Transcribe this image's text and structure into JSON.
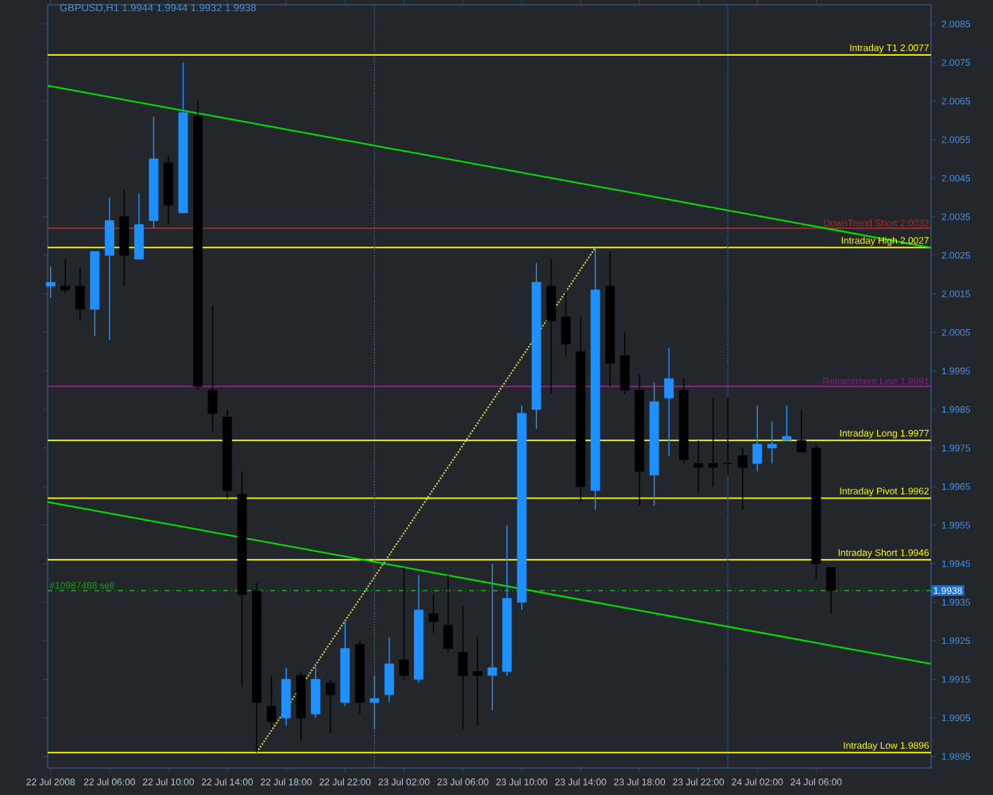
{
  "chart_data": {
    "type": "candlestick",
    "title": "GBPUSD,H1 1.9944 1.9944 1.9932 1.9938",
    "x": [
      "2008-07-22T02:00",
      "2008-07-22T03:00",
      "2008-07-22T04:00",
      "2008-07-22T05:00",
      "2008-07-22T06:00",
      "2008-07-22T07:00",
      "2008-07-22T08:00",
      "2008-07-22T09:00",
      "2008-07-22T10:00",
      "2008-07-22T11:00",
      "2008-07-22T12:00",
      "2008-07-22T13:00",
      "2008-07-22T14:00",
      "2008-07-22T15:00",
      "2008-07-22T16:00",
      "2008-07-22T17:00",
      "2008-07-22T18:00",
      "2008-07-22T19:00",
      "2008-07-22T20:00",
      "2008-07-22T21:00",
      "2008-07-22T22:00",
      "2008-07-22T23:00",
      "2008-07-23T00:00",
      "2008-07-23T01:00",
      "2008-07-23T02:00",
      "2008-07-23T03:00",
      "2008-07-23T04:00",
      "2008-07-23T05:00",
      "2008-07-23T06:00",
      "2008-07-23T07:00",
      "2008-07-23T08:00",
      "2008-07-23T09:00",
      "2008-07-23T10:00",
      "2008-07-23T11:00",
      "2008-07-23T12:00",
      "2008-07-23T13:00",
      "2008-07-23T14:00",
      "2008-07-23T15:00",
      "2008-07-23T16:00",
      "2008-07-23T17:00",
      "2008-07-23T18:00",
      "2008-07-23T19:00",
      "2008-07-23T20:00",
      "2008-07-23T21:00",
      "2008-07-23T22:00",
      "2008-07-23T23:00",
      "2008-07-24T00:00",
      "2008-07-24T01:00",
      "2008-07-24T02:00",
      "2008-07-24T03:00",
      "2008-07-24T04:00",
      "2008-07-24T05:00",
      "2008-07-24T06:00",
      "2008-07-24T07:00"
    ],
    "ohlc": [
      [
        2.0017,
        2.0022,
        2.0014,
        2.0018
      ],
      [
        2.0017,
        2.0024,
        2.0015,
        2.0016
      ],
      [
        2.0017,
        2.0022,
        2.0008,
        2.0011
      ],
      [
        2.0011,
        2.0026,
        2.0004,
        2.0026
      ],
      [
        2.0025,
        2.004,
        2.0003,
        2.0034
      ],
      [
        2.0035,
        2.0042,
        2.0017,
        2.0025
      ],
      [
        2.0024,
        2.0041,
        2.0024,
        2.0033
      ],
      [
        2.0034,
        2.0061,
        2.0032,
        2.005
      ],
      [
        2.0049,
        2.0051,
        2.0033,
        2.0038
      ],
      [
        2.0036,
        2.0075,
        2.0036,
        2.0062
      ],
      [
        2.0061,
        2.0065,
        1.999,
        1.9991
      ],
      [
        1.999,
        2.0012,
        1.9979,
        1.9984
      ],
      [
        1.9983,
        1.9985,
        1.9962,
        1.9964
      ],
      [
        1.9963,
        1.9969,
        1.9913,
        1.9937
      ],
      [
        1.9938,
        1.994,
        1.9896,
        1.9909
      ],
      [
        1.9908,
        1.9916,
        1.9902,
        1.9904
      ],
      [
        1.9905,
        1.9918,
        1.9903,
        1.9915
      ],
      [
        1.9916,
        1.9917,
        1.9899,
        1.9905
      ],
      [
        1.9906,
        1.9919,
        1.9905,
        1.9915
      ],
      [
        1.9914,
        1.9915,
        1.9901,
        1.9911
      ],
      [
        1.9909,
        1.993,
        1.9908,
        1.9923
      ],
      [
        1.9924,
        1.9925,
        1.9906,
        1.9909
      ],
      [
        1.9909,
        1.9916,
        1.9902,
        1.991
      ],
      [
        1.9911,
        1.9926,
        1.9909,
        1.9919
      ],
      [
        1.992,
        1.9944,
        1.9915,
        1.9916
      ],
      [
        1.9915,
        1.9942,
        1.9914,
        1.9933
      ],
      [
        1.9932,
        1.9937,
        1.9927,
        1.993
      ],
      [
        1.9929,
        1.9942,
        1.9922,
        1.9923
      ],
      [
        1.9922,
        1.9934,
        1.9902,
        1.9916
      ],
      [
        1.9917,
        1.9926,
        1.9903,
        1.9916
      ],
      [
        1.9916,
        1.9945,
        1.9907,
        1.9918
      ],
      [
        1.9917,
        1.9955,
        1.9916,
        1.9936
      ],
      [
        1.9935,
        1.9986,
        1.9933,
        1.9984
      ],
      [
        1.9985,
        2.0023,
        1.998,
        2.0018
      ],
      [
        2.0017,
        2.0024,
        1.9989,
        2.0008
      ],
      [
        2.0009,
        2.0016,
        1.9999,
        2.0002
      ],
      [
        2.0,
        2.0009,
        1.9961,
        1.9965
      ],
      [
        1.9964,
        2.0027,
        1.9959,
        2.0016
      ],
      [
        2.0017,
        2.0026,
        1.9991,
        1.9997
      ],
      [
        1.9999,
        2.0005,
        1.9989,
        1.999
      ],
      [
        1.999,
        1.9994,
        1.996,
        1.9969
      ],
      [
        1.9968,
        1.9992,
        1.996,
        1.9987
      ],
      [
        1.9988,
        2.0001,
        1.9973,
        1.9993
      ],
      [
        1.999,
        1.9993,
        1.9971,
        1.9972
      ],
      [
        1.9971,
        1.9977,
        1.9963,
        1.997
      ],
      [
        1.9971,
        1.9988,
        1.9965,
        1.997
      ],
      [
        1.9971,
        1.9988,
        1.9968,
        1.9971
      ],
      [
        1.9973,
        1.9975,
        1.9959,
        1.997
      ],
      [
        1.9971,
        1.9986,
        1.9969,
        1.9976
      ],
      [
        1.9975,
        1.9982,
        1.9971,
        1.9976
      ],
      [
        1.9977,
        1.9986,
        1.9977,
        1.9978
      ],
      [
        1.9977,
        1.9985,
        1.9974,
        1.9974
      ],
      [
        1.9975,
        1.9976,
        1.9941,
        1.9945
      ],
      [
        1.9944,
        1.9944,
        1.9932,
        1.9938
      ]
    ],
    "colors": [
      "#1e90ff",
      "#000000",
      "#000000",
      "#1e90ff",
      "#1e90ff",
      "#000000",
      "#1e90ff",
      "#1e90ff",
      "#000000",
      "#1e90ff",
      "#000000",
      "#000000",
      "#000000",
      "#000000",
      "#000000",
      "#000000",
      "#1e90ff",
      "#000000",
      "#1e90ff",
      "#000000",
      "#1e90ff",
      "#000000",
      "#1e90ff",
      "#1e90ff",
      "#000000",
      "#1e90ff",
      "#000000",
      "#000000",
      "#000000",
      "#000000",
      "#1e90ff",
      "#1e90ff",
      "#1e90ff",
      "#1e90ff",
      "#000000",
      "#000000",
      "#000000",
      "#1e90ff",
      "#000000",
      "#000000",
      "#000000",
      "#1e90ff",
      "#1e90ff",
      "#000000",
      "#000000",
      "#000000",
      "#000000",
      "#000000",
      "#1e90ff",
      "#1e90ff",
      "#1e90ff",
      "#000000",
      "#000000",
      "#000000"
    ],
    "series": [
      {
        "type": "line",
        "x": [
          "2008-07-22T01:48",
          "2008-07-24T13:48"
        ],
        "values": [
          2.0069,
          2.0027
        ],
        "color": "#00e000"
      },
      {
        "type": "line",
        "x": [
          "2008-07-22T01:48",
          "2008-07-24T13:48"
        ],
        "values": [
          1.9961,
          1.9919
        ],
        "color": "#00e000"
      },
      {
        "type": "line",
        "x": [
          "2008-07-22T16:00",
          "2008-07-23T15:00"
        ],
        "values": [
          1.9896,
          2.0027
        ],
        "color": "#d8d840",
        "line_style": "dotted"
      }
    ],
    "xlim": [
      "2008-07-22T01:48",
      "2008-07-24T13:48"
    ],
    "xticks": [
      {
        "value": "2008-07-22T02:00",
        "label": "22 Jul 2008"
      },
      {
        "value": "2008-07-22T06:00",
        "label": "22 Jul 06:00"
      },
      {
        "value": "2008-07-22T10:00",
        "label": "22 Jul 10:00"
      },
      {
        "value": "2008-07-22T14:00",
        "label": "22 Jul 14:00"
      },
      {
        "value": "2008-07-22T18:00",
        "label": "22 Jul 18:00"
      },
      {
        "value": "2008-07-22T22:00",
        "label": "22 Jul 22:00"
      },
      {
        "value": "2008-07-23T02:00",
        "label": "23 Jul 02:00"
      },
      {
        "value": "2008-07-23T06:00",
        "label": "23 Jul 06:00"
      },
      {
        "value": "2008-07-23T10:00",
        "label": "23 Jul 10:00"
      },
      {
        "value": "2008-07-23T14:00",
        "label": "23 Jul 14:00"
      },
      {
        "value": "2008-07-23T18:00",
        "label": "23 Jul 18:00"
      },
      {
        "value": "2008-07-23T22:00",
        "label": "23 Jul 22:00"
      },
      {
        "value": "2008-07-24T02:00",
        "label": "24 Jul 02:00"
      },
      {
        "value": "2008-07-24T06:00",
        "label": "24 Jul 06:00"
      }
    ],
    "ylim": [
      1.9892,
      2.009
    ],
    "yticks": [
      1.9895,
      1.9905,
      1.9915,
      1.9925,
      1.9935,
      1.9945,
      1.9955,
      1.9965,
      1.9975,
      1.9985,
      1.9995,
      2.0005,
      2.0015,
      2.0025,
      2.0035,
      2.0045,
      2.0055,
      2.0065,
      2.0075,
      2.0085
    ],
    "ref_lines": [
      {
        "axis": "y",
        "value": 2.0077,
        "label": "Intraday T1 2.0077",
        "color": "#ffff00"
      },
      {
        "axis": "y",
        "value": 2.0032,
        "label": "DownTrend Short 2.0032",
        "color": "#a52a2a"
      },
      {
        "axis": "y",
        "value": 2.0027,
        "label": "Intraday High 2.0027",
        "color": "#ffff00"
      },
      {
        "axis": "y",
        "value": 1.9991,
        "label": "Retracement Line 1.9991",
        "color": "#8b1a8b"
      },
      {
        "axis": "y",
        "value": 1.9977,
        "label": "Intraday Long 1.9977",
        "color": "#ffff00"
      },
      {
        "axis": "y",
        "value": 1.9962,
        "label": "Intraday Pivot 1.9962",
        "color": "#ffff00"
      },
      {
        "axis": "y",
        "value": 1.9946,
        "label": "Intraday Short 1.9946",
        "color": "#ffff00"
      },
      {
        "axis": "y",
        "value": 1.9938,
        "label": "#10987488 sell",
        "color": "#1f9a1f",
        "line_style": "dashed"
      },
      {
        "axis": "y",
        "value": 1.9896,
        "label": "Intraday Low 1.9896",
        "color": "#ffff00"
      },
      {
        "axis": "x",
        "value": "2008-07-23T00:00",
        "color": "#2a6fb0",
        "line_style": "dotted"
      },
      {
        "axis": "x",
        "value": "2008-07-24T00:00",
        "color": "#2a6fb0",
        "line_style": "dotted"
      }
    ],
    "annotations": [
      "1.9938"
    ]
  }
}
